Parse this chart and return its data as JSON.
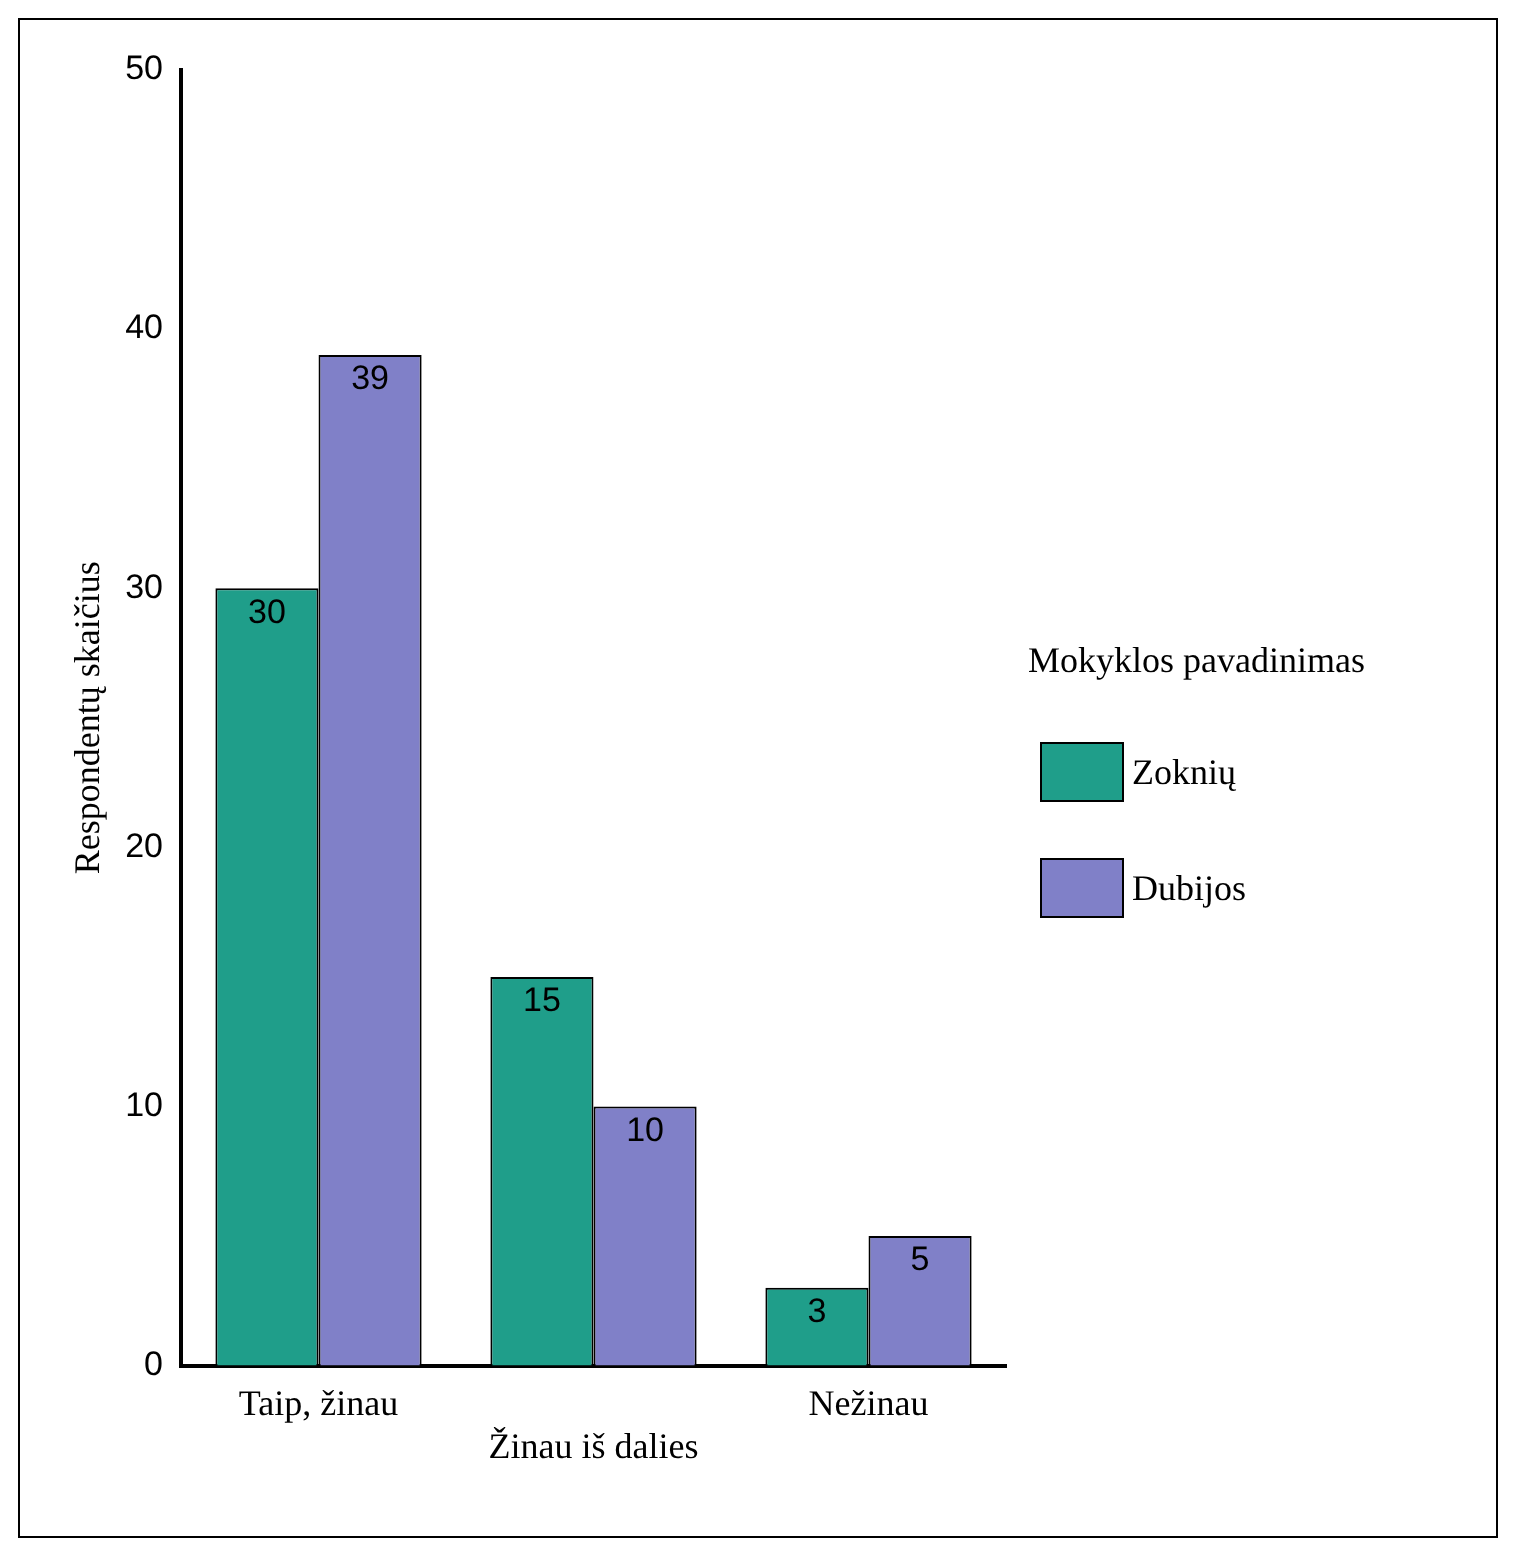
{
  "chart_data": {
    "type": "bar",
    "ylabel": "Respondentų skaičius",
    "legend_title": "Mokyklos pavadinimas",
    "legend": "right",
    "categories": [
      "Taip, žinau",
      "Žinau iš dalies",
      "Nežinau"
    ],
    "series": [
      {
        "name": "Zoknių",
        "color": "#1f9e8a",
        "values": [
          30,
          15,
          3
        ]
      },
      {
        "name": "Dubijos",
        "color": "#8080c8",
        "values": [
          39,
          10,
          5
        ]
      }
    ],
    "ylim": [
      0,
      50
    ],
    "yticks": [
      0,
      10,
      20,
      30,
      40,
      50
    ],
    "grid": false,
    "data_labels": true
  }
}
